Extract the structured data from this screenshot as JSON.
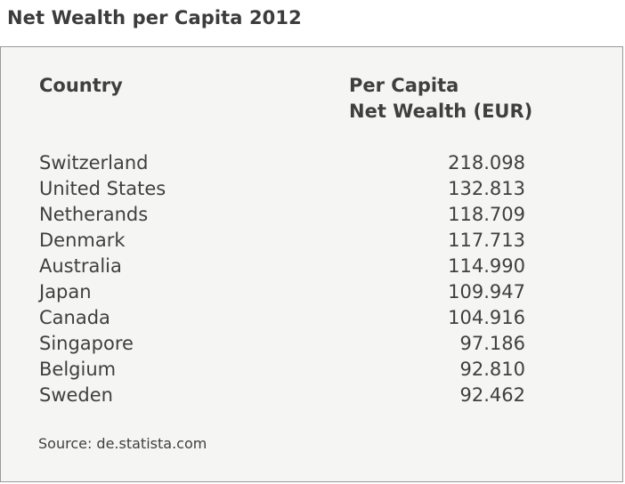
{
  "title": "Net Wealth per Capita 2012",
  "table": {
    "header_country": "Country",
    "header_value_line1": "Per Capita",
    "header_value_line2": "Net Wealth (EUR)"
  },
  "source": "Source: de.statista.com",
  "chart_data": {
    "type": "table",
    "title": "Net Wealth per Capita 2012",
    "columns": [
      "Country",
      "Per Capita Net Wealth (EUR)"
    ],
    "rows": [
      {
        "country": "Switzerland",
        "value": "218.098"
      },
      {
        "country": "United States",
        "value": "132.813"
      },
      {
        "country": "Netherands",
        "value": "118.709"
      },
      {
        "country": "Denmark",
        "value": "117.713"
      },
      {
        "country": "Australia",
        "value": "114.990"
      },
      {
        "country": "Japan",
        "value": "109.947"
      },
      {
        "country": "Canada",
        "value": "104.916"
      },
      {
        "country": "Singapore",
        "value": "97.186"
      },
      {
        "country": "Belgium",
        "value": "92.810"
      },
      {
        "country": "Sweden",
        "value": "92.462"
      }
    ]
  }
}
